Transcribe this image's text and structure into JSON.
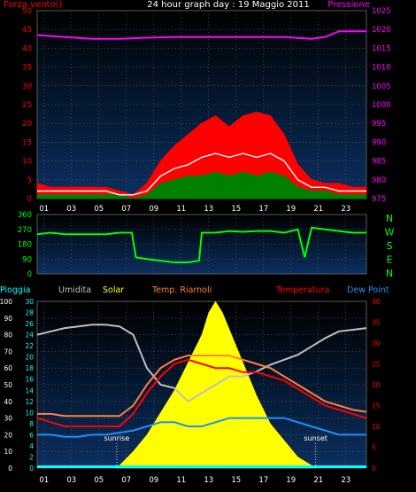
{
  "chart_data": [
    {
      "type": "line",
      "title": "24 hour graph day : 19 Maggio 2011",
      "left_axis_label": "Forza vento()",
      "right_axis_label": "Pressione",
      "x_ticks": [
        "01",
        "03",
        "05",
        "07",
        "09",
        "11",
        "13",
        "15",
        "17",
        "19",
        "21",
        "23"
      ],
      "left_ticks": [
        "0",
        "5",
        "10",
        "15",
        "20",
        "25",
        "30",
        "35",
        "40",
        "45",
        "50"
      ],
      "right_ticks": [
        "975",
        "980",
        "985",
        "990",
        "995",
        "1000",
        "1005",
        "1010",
        "1015",
        "1020",
        "1025"
      ],
      "ylim_left": [
        0,
        50
      ],
      "ylim_right": [
        975,
        1025
      ],
      "series": [
        {
          "key": "gust",
          "axis": "left",
          "color": "#ff0000",
          "x": [
            0,
            1,
            2,
            3,
            4,
            5,
            6,
            7,
            8,
            9,
            10,
            11,
            12,
            13,
            14,
            15,
            16,
            17,
            18,
            19,
            20,
            21,
            22,
            23,
            24
          ],
          "values": [
            4,
            3,
            3,
            3,
            3,
            3,
            2,
            1,
            4,
            10,
            14,
            17,
            20,
            22,
            19,
            22,
            23,
            22,
            17,
            9,
            5,
            4,
            4,
            3,
            3
          ]
        },
        {
          "key": "avg",
          "axis": "left",
          "color": "#ffffff",
          "x": [
            0,
            1,
            2,
            3,
            4,
            5,
            6,
            7,
            8,
            9,
            10,
            11,
            12,
            13,
            14,
            15,
            16,
            17,
            18,
            19,
            20,
            21,
            22,
            23,
            24
          ],
          "values": [
            2,
            2,
            2,
            2,
            2,
            2,
            1,
            1,
            2,
            6,
            8,
            9,
            11,
            12,
            11,
            12,
            11,
            12,
            10,
            5,
            3,
            3,
            2,
            2,
            2
          ]
        },
        {
          "key": "wind",
          "axis": "left",
          "color": "#008000",
          "x": [
            0,
            1,
            2,
            3,
            4,
            5,
            6,
            7,
            8,
            9,
            10,
            11,
            12,
            13,
            14,
            15,
            16,
            17,
            18,
            19,
            20,
            21,
            22,
            23,
            24
          ],
          "values": [
            1,
            1,
            1,
            1,
            1,
            1,
            1,
            0,
            1,
            4,
            5,
            6,
            6,
            7,
            6,
            7,
            6,
            7,
            6,
            3,
            2,
            2,
            1,
            1,
            1
          ]
        },
        {
          "key": "pressure",
          "axis": "right",
          "color": "#ff00ff",
          "x": [
            0,
            2,
            4,
            6,
            8,
            10,
            12,
            14,
            16,
            18,
            20,
            21,
            22,
            24
          ],
          "values": [
            1018.5,
            1018,
            1017.5,
            1017.5,
            1017.8,
            1018,
            1018,
            1018,
            1018,
            1018,
            1017.5,
            1018,
            1019.5,
            1019.5
          ]
        }
      ]
    },
    {
      "type": "scatter",
      "title": "",
      "left_ticks": [
        "0",
        "90",
        "180",
        "270",
        "360"
      ],
      "right_ticks": [
        "N",
        "W",
        "S",
        "E",
        "N"
      ],
      "ylim": [
        0,
        360
      ],
      "series": [
        {
          "key": "direction",
          "color": "#00ff00",
          "x": [
            0,
            1,
            2,
            3,
            4,
            5,
            6,
            6.9,
            7.2,
            8,
            9,
            10,
            11,
            11.8,
            12,
            13,
            14,
            15,
            16,
            17,
            18,
            19,
            19.5,
            20,
            21,
            22,
            23,
            24
          ],
          "values": [
            240,
            250,
            240,
            240,
            240,
            240,
            250,
            250,
            100,
            90,
            80,
            70,
            70,
            80,
            250,
            250,
            260,
            255,
            260,
            260,
            250,
            270,
            100,
            280,
            270,
            260,
            250,
            250
          ]
        }
      ]
    },
    {
      "type": "line",
      "title": "",
      "legend": [
        {
          "text": "Pioggia",
          "color": "#00ffff"
        },
        {
          "text": "Umidita",
          "color": "#c0c0c0"
        },
        {
          "text": "Solar",
          "color": "#ffff00"
        },
        {
          "text": "Temp. Riarnoli",
          "color": "#ff8040"
        },
        {
          "text": "Temperatura",
          "color": "#ff0000"
        },
        {
          "text": "Dew Point",
          "color": "#1e90ff"
        }
      ],
      "x_ticks": [
        "01",
        "03",
        "05",
        "07",
        "09",
        "11",
        "13",
        "15",
        "17",
        "19",
        "21",
        "23"
      ],
      "hum_ticks": [
        "0",
        "10",
        "20",
        "30",
        "40",
        "50",
        "60",
        "70",
        "80",
        "90",
        "100"
      ],
      "solar_ticks": [
        "0",
        "2",
        "4",
        "6",
        "8",
        "10",
        "12",
        "14",
        "16",
        "18",
        "20",
        "22",
        "24",
        "26",
        "28",
        "30"
      ],
      "temp_ticks": [
        "0",
        "5",
        "10",
        "15",
        "20",
        "25",
        "30",
        "35",
        "40"
      ],
      "ylim_hum": [
        0,
        100
      ],
      "ylim_solar": [
        0,
        30
      ],
      "ylim_temp": [
        0,
        40
      ],
      "annotations": [
        {
          "text": "sunrise",
          "x": 5.8
        },
        {
          "text": "sunset",
          "x": 20.3
        }
      ],
      "series": [
        {
          "key": "humidity",
          "axis": "hum",
          "color": "#c0c0c0",
          "x": [
            0,
            1,
            2,
            3,
            4,
            5,
            6,
            7,
            8,
            9,
            10,
            11,
            12,
            13,
            14,
            15,
            16,
            17,
            18,
            19,
            20,
            21,
            22,
            23,
            24
          ],
          "values": [
            80,
            82,
            84,
            85,
            86,
            86,
            85,
            80,
            60,
            50,
            48,
            40,
            45,
            50,
            55,
            55,
            58,
            62,
            65,
            68,
            73,
            78,
            82,
            83,
            84
          ]
        },
        {
          "key": "solar",
          "axis": "solar",
          "color": "#ffff00",
          "x": [
            5.8,
            7,
            8,
            9,
            10,
            11,
            12,
            12.5,
            13,
            13.5,
            14,
            15,
            16,
            17,
            18,
            19,
            20,
            20.3
          ],
          "values": [
            0,
            3,
            6,
            10,
            14,
            19,
            24,
            28,
            30,
            28,
            25,
            19,
            13,
            8,
            5,
            2,
            0.5,
            0
          ]
        },
        {
          "key": "temp_riarnoli",
          "axis": "temp",
          "color": "#ff8040",
          "x": [
            0,
            1,
            2,
            3,
            4,
            5,
            6,
            7,
            8,
            9,
            10,
            11,
            12,
            13,
            14,
            15,
            16,
            17,
            18,
            19,
            20,
            21,
            22,
            23,
            24
          ],
          "values": [
            13,
            13,
            12.5,
            12.5,
            12.5,
            12.5,
            12.5,
            15,
            20,
            24,
            26,
            27,
            27,
            27,
            27,
            26,
            25,
            24,
            22,
            20,
            18,
            16,
            15,
            14,
            13.5
          ]
        },
        {
          "key": "temperatura",
          "axis": "temp",
          "color": "#ff0000",
          "x": [
            0,
            1,
            2,
            3,
            4,
            5,
            6,
            7,
            8,
            9,
            10,
            11,
            12,
            13,
            14,
            15,
            16,
            17,
            18,
            19,
            20,
            21,
            22,
            23,
            24
          ],
          "values": [
            12,
            11,
            10,
            10,
            10,
            10,
            10,
            13,
            18,
            22,
            25,
            26,
            25,
            24,
            24,
            23,
            23,
            22,
            21,
            19,
            17,
            15,
            14,
            13,
            12
          ]
        },
        {
          "key": "dewpoint",
          "axis": "temp",
          "color": "#1e90ff",
          "x": [
            0,
            1,
            2,
            3,
            4,
            5,
            6,
            7,
            8,
            9,
            10,
            11,
            12,
            13,
            14,
            15,
            16,
            17,
            18,
            19,
            20,
            21,
            22,
            23,
            24
          ],
          "values": [
            8,
            8,
            7.5,
            7.5,
            8,
            8,
            8.5,
            9,
            10,
            11,
            11,
            10,
            10,
            11,
            12,
            12,
            12,
            12,
            12,
            11,
            10,
            9,
            8,
            8,
            8
          ]
        },
        {
          "key": "rain",
          "axis": "hum",
          "color": "#00ffff",
          "x": [
            0,
            24
          ],
          "values": [
            0,
            0
          ]
        }
      ]
    }
  ]
}
